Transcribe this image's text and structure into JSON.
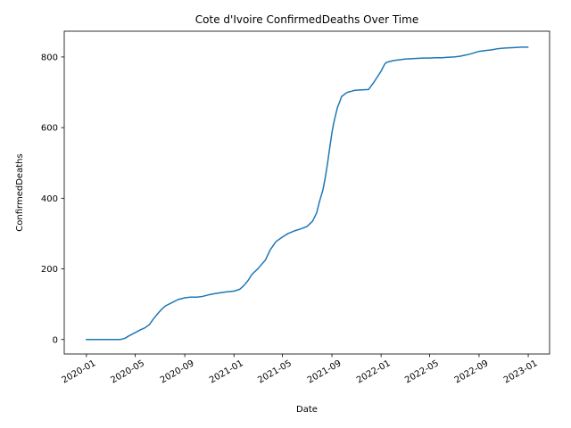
{
  "chart_data": {
    "type": "line",
    "title": "Cote d'Ivoire  ConfirmedDeaths Over Time",
    "xlabel": "Date",
    "ylabel": "ConfirmedDeaths",
    "x_ticks": [
      "2020-01",
      "2020-05",
      "2020-09",
      "2021-01",
      "2021-05",
      "2021-09",
      "2022-01",
      "2022-05",
      "2022-09",
      "2023-01"
    ],
    "y_ticks": [
      0,
      200,
      400,
      600,
      800
    ],
    "xlim": [
      "2019-11-07",
      "2023-02-23"
    ],
    "ylim": [
      -41,
      873
    ],
    "grid": false,
    "legend": "none",
    "line_color": "#1f77b4",
    "series": [
      {
        "x": [
          "2020-01-01",
          "2020-02-01",
          "2020-03-01",
          "2020-03-25",
          "2020-04-05",
          "2020-04-15",
          "2020-04-25",
          "2020-05-05",
          "2020-05-15",
          "2020-05-25",
          "2020-06-05",
          "2020-06-15",
          "2020-06-25",
          "2020-07-05",
          "2020-07-15",
          "2020-08-01",
          "2020-08-15",
          "2020-09-01",
          "2020-09-15",
          "2020-10-01",
          "2020-10-15",
          "2020-11-01",
          "2020-11-15",
          "2020-12-01",
          "2020-12-15",
          "2021-01-01",
          "2021-01-15",
          "2021-01-25",
          "2021-02-05",
          "2021-02-15",
          "2021-03-01",
          "2021-03-10",
          "2021-03-20",
          "2021-04-01",
          "2021-04-15",
          "2021-05-01",
          "2021-05-15",
          "2021-06-01",
          "2021-06-15",
          "2021-07-01",
          "2021-07-15",
          "2021-07-25",
          "2021-08-01",
          "2021-08-10",
          "2021-08-15",
          "2021-08-20",
          "2021-08-25",
          "2021-09-01",
          "2021-09-05",
          "2021-09-10",
          "2021-09-15",
          "2021-09-20",
          "2021-09-25",
          "2021-10-01",
          "2021-10-05",
          "2021-10-10",
          "2021-10-15",
          "2021-10-20",
          "2021-10-25",
          "2021-11-01",
          "2021-11-15",
          "2021-12-01",
          "2021-12-15",
          "2022-01-01",
          "2022-01-10",
          "2022-01-15",
          "2022-02-01",
          "2022-02-15",
          "2022-03-01",
          "2022-03-15",
          "2022-04-01",
          "2022-04-15",
          "2022-05-01",
          "2022-05-15",
          "2022-06-01",
          "2022-06-15",
          "2022-07-01",
          "2022-07-15",
          "2022-08-01",
          "2022-08-15",
          "2022-09-01",
          "2022-09-15",
          "2022-10-01",
          "2022-10-15",
          "2022-11-01",
          "2022-11-15",
          "2022-12-01",
          "2022-12-15",
          "2022-12-31"
        ],
        "y": [
          0,
          0,
          0,
          0,
          3,
          10,
          16,
          22,
          28,
          33,
          42,
          58,
          72,
          85,
          95,
          105,
          113,
          118,
          120,
          120,
          122,
          127,
          130,
          133,
          135,
          137,
          142,
          152,
          167,
          185,
          200,
          212,
          225,
          254,
          277,
          290,
          300,
          308,
          313,
          320,
          335,
          358,
          390,
          425,
          455,
          490,
          530,
          585,
          610,
          635,
          658,
          672,
          688,
          693,
          697,
          700,
          702,
          703,
          705,
          706,
          707,
          708,
          730,
          760,
          780,
          785,
          790,
          792,
          794,
          795,
          796,
          797,
          797,
          798,
          798,
          799,
          800,
          802,
          806,
          810,
          816,
          818,
          820,
          823,
          825,
          826,
          827,
          828,
          828
        ]
      }
    ]
  }
}
